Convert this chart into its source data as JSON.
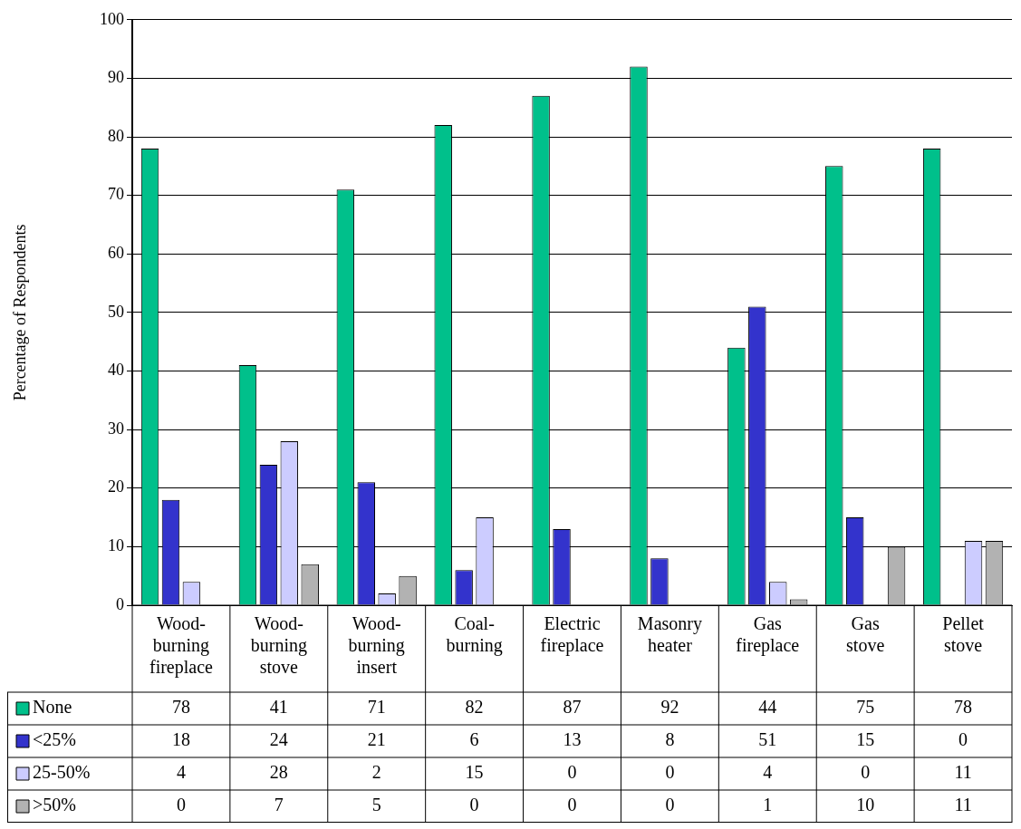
{
  "chart_data": {
    "type": "bar",
    "ylabel": "Percentage of Respondents",
    "categories": [
      "Wood-burning fireplace",
      "Wood-burning stove",
      "Wood-burning insert",
      "Coal-burning",
      "Electric fireplace",
      "Masonry heater",
      "Gas fireplace",
      "Gas stove",
      "Pellet stove"
    ],
    "series": [
      {
        "name": "None",
        "color": "#00c08b",
        "values": [
          78,
          41,
          71,
          82,
          87,
          92,
          44,
          75,
          78
        ]
      },
      {
        "name": "<25%",
        "color": "#3333cc",
        "values": [
          18,
          24,
          21,
          6,
          13,
          8,
          51,
          15,
          0
        ]
      },
      {
        "name": "25-50%",
        "color": "#ccccff",
        "values": [
          4,
          28,
          2,
          15,
          0,
          0,
          4,
          0,
          11
        ]
      },
      {
        "name": ">50%",
        "color": "#b2b2b2",
        "values": [
          0,
          7,
          5,
          0,
          0,
          0,
          1,
          10,
          11
        ]
      }
    ],
    "ylim": [
      0,
      100
    ],
    "yticks": [
      0,
      10,
      20,
      30,
      40,
      50,
      60,
      70,
      80,
      90,
      100
    ],
    "grid": "y",
    "legend": "bottom left",
    "data_labels": true
  }
}
